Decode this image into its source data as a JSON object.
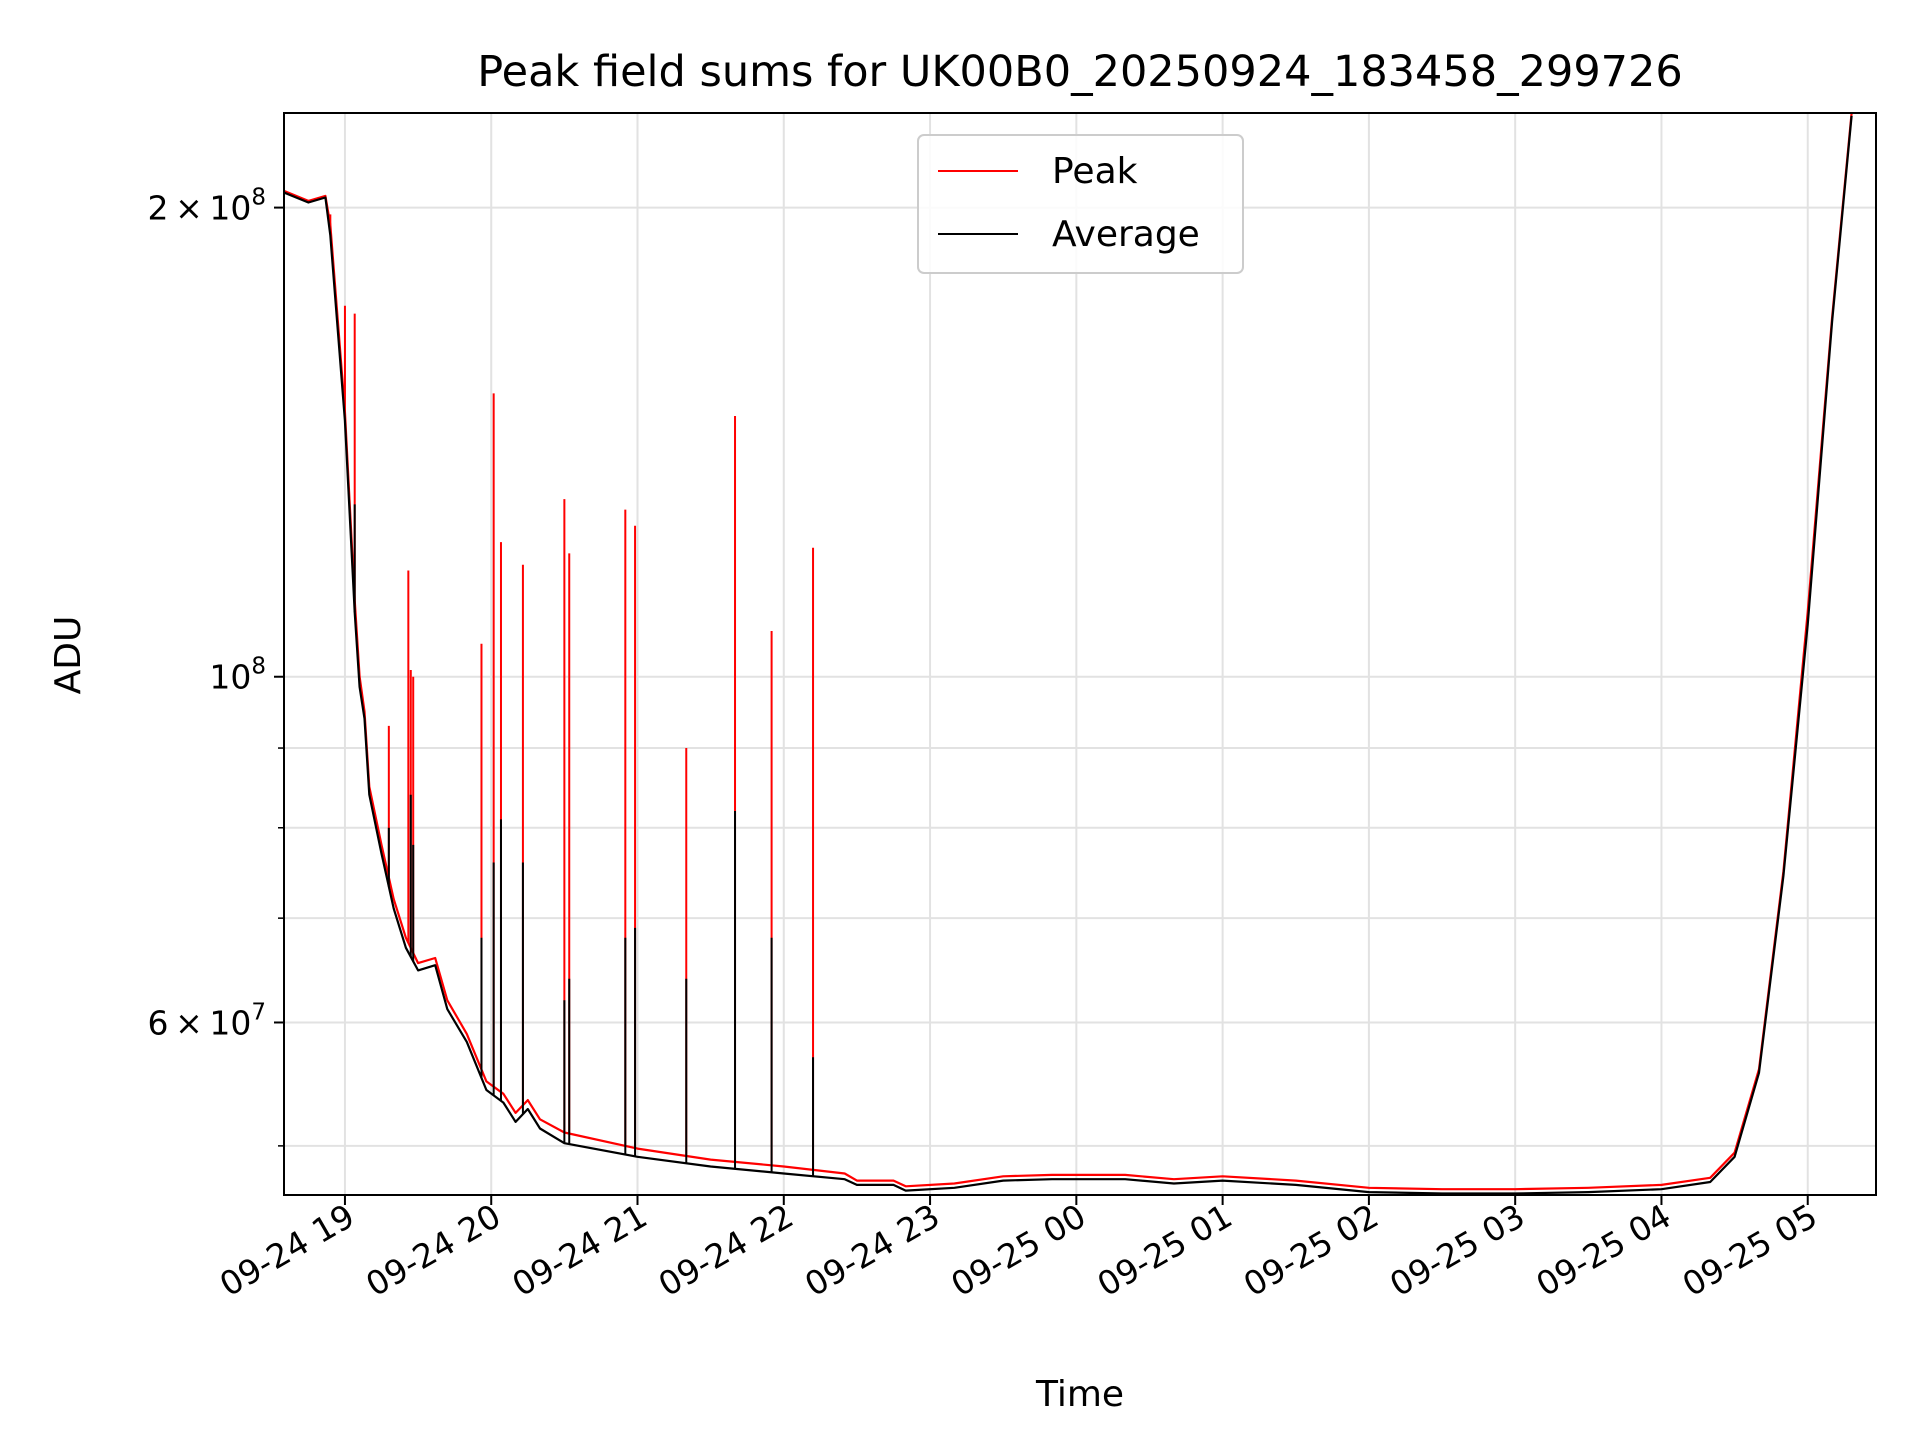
{
  "chart_data": {
    "type": "line",
    "title": "Peak field sums for UK00B0_20250924_183458_299726",
    "xlabel": "Time",
    "ylabel": "ADU",
    "yscale": "log",
    "xlim": [
      "2025-09-24 18:35",
      "2025-09-25 05:28"
    ],
    "ylim": [
      46500000,
      230000000
    ],
    "x_tick_labels": [
      "09-24 19",
      "09-24 20",
      "09-24 21",
      "09-24 22",
      "09-24 23",
      "09-25 00",
      "09-25 01",
      "09-25 02",
      "09-25 03",
      "09-25 04",
      "09-25 05"
    ],
    "x_ticks": [
      "2025-09-24 19:00",
      "2025-09-24 20:00",
      "2025-09-24 21:00",
      "2025-09-24 22:00",
      "2025-09-24 23:00",
      "2025-09-25 00:00",
      "2025-09-25 01:00",
      "2025-09-25 02:00",
      "2025-09-25 03:00",
      "2025-09-25 04:00",
      "2025-09-25 05:00"
    ],
    "y_major_ticks": [
      {
        "value": 200000000,
        "mantissa": "2",
        "exponent": "8"
      },
      {
        "value": 100000000,
        "mantissa": "",
        "exponent": "8"
      },
      {
        "value": 60000000,
        "mantissa": "6",
        "exponent": "7"
      }
    ],
    "y_minor_ticks": [
      50000000,
      70000000,
      80000000,
      90000000
    ],
    "grid": true,
    "legend": {
      "placement": "top-center"
    },
    "series": [
      {
        "name": "Peak",
        "color": "#ff0000",
        "points": [
          [
            "2025-09-24 18:35",
            205000000
          ],
          [
            "2025-09-24 18:45",
            202000000
          ],
          [
            "2025-09-24 18:52",
            203500000
          ],
          [
            "2025-09-24 18:54",
            195000000
          ],
          [
            "2025-09-24 19:00",
            148000000
          ],
          [
            "2025-09-24 19:04",
            112000000
          ],
          [
            "2025-09-24 19:06",
            100000000
          ],
          [
            "2025-09-24 19:08",
            95000000
          ],
          [
            "2025-09-24 19:10",
            85000000
          ],
          [
            "2025-09-24 19:15",
            78000000
          ],
          [
            "2025-09-24 19:20",
            72000000
          ],
          [
            "2025-09-24 19:25",
            68000000
          ],
          [
            "2025-09-24 19:30",
            65500000
          ],
          [
            "2025-09-24 19:37",
            66000000
          ],
          [
            "2025-09-24 19:42",
            62000000
          ],
          [
            "2025-09-24 19:50",
            59000000
          ],
          [
            "2025-09-24 19:58",
            55000000
          ],
          [
            "2025-09-24 20:05",
            54000000
          ],
          [
            "2025-09-24 20:10",
            52500000
          ],
          [
            "2025-09-24 20:15",
            53500000
          ],
          [
            "2025-09-24 20:20",
            52000000
          ],
          [
            "2025-09-24 20:30",
            51000000
          ],
          [
            "2025-09-24 21:00",
            49800000
          ],
          [
            "2025-09-24 21:30",
            49000000
          ],
          [
            "2025-09-24 22:00",
            48500000
          ],
          [
            "2025-09-24 22:25",
            48000000
          ],
          [
            "2025-09-24 22:30",
            47500000
          ],
          [
            "2025-09-24 22:45",
            47500000
          ],
          [
            "2025-09-24 22:50",
            47100000
          ],
          [
            "2025-09-24 23:10",
            47300000
          ],
          [
            "2025-09-24 23:30",
            47800000
          ],
          [
            "2025-09-24 23:50",
            47900000
          ],
          [
            "2025-09-25 00:20",
            47900000
          ],
          [
            "2025-09-25 00:40",
            47600000
          ],
          [
            "2025-09-25 01:00",
            47800000
          ],
          [
            "2025-09-25 01:30",
            47500000
          ],
          [
            "2025-09-25 02:00",
            47000000
          ],
          [
            "2025-09-25 02:30",
            46900000
          ],
          [
            "2025-09-25 03:00",
            46900000
          ],
          [
            "2025-09-25 03:30",
            47000000
          ],
          [
            "2025-09-25 04:00",
            47200000
          ],
          [
            "2025-09-25 04:20",
            47700000
          ],
          [
            "2025-09-25 04:30",
            49500000
          ],
          [
            "2025-09-25 04:40",
            56000000
          ],
          [
            "2025-09-25 04:50",
            75000000
          ],
          [
            "2025-09-25 05:00",
            110000000
          ],
          [
            "2025-09-25 05:10",
            170000000
          ],
          [
            "2025-09-25 05:18",
            230000000
          ]
        ],
        "spikes": [
          [
            "2025-09-24 18:54",
            198000000
          ],
          [
            "2025-09-24 19:00",
            173000000
          ],
          [
            "2025-09-24 19:04",
            171000000
          ],
          [
            "2025-09-24 19:18",
            93000000
          ],
          [
            "2025-09-24 19:26",
            117000000
          ],
          [
            "2025-09-24 19:27",
            101000000
          ],
          [
            "2025-09-24 19:28",
            100000000
          ],
          [
            "2025-09-24 19:56",
            105000000
          ],
          [
            "2025-09-24 20:01",
            152000000
          ],
          [
            "2025-09-24 20:04",
            122000000
          ],
          [
            "2025-09-24 20:13",
            118000000
          ],
          [
            "2025-09-24 20:30",
            130000000
          ],
          [
            "2025-09-24 20:32",
            120000000
          ],
          [
            "2025-09-24 20:55",
            128000000
          ],
          [
            "2025-09-24 20:59",
            125000000
          ],
          [
            "2025-09-24 21:20",
            90000000
          ],
          [
            "2025-09-24 21:40",
            147000000
          ],
          [
            "2025-09-24 21:55",
            107000000
          ],
          [
            "2025-09-24 22:12",
            121000000
          ]
        ]
      },
      {
        "name": "Average",
        "color": "#000000",
        "points": [
          [
            "2025-09-24 18:35",
            204500000
          ],
          [
            "2025-09-24 18:45",
            201500000
          ],
          [
            "2025-09-24 18:52",
            203000000
          ],
          [
            "2025-09-24 18:54",
            192000000
          ],
          [
            "2025-09-24 19:00",
            146000000
          ],
          [
            "2025-09-24 19:04",
            110000000
          ],
          [
            "2025-09-24 19:06",
            98500000
          ],
          [
            "2025-09-24 19:08",
            94000000
          ],
          [
            "2025-09-24 19:10",
            84000000
          ],
          [
            "2025-09-24 19:15",
            77000000
          ],
          [
            "2025-09-24 19:20",
            71000000
          ],
          [
            "2025-09-24 19:25",
            67000000
          ],
          [
            "2025-09-24 19:30",
            64800000
          ],
          [
            "2025-09-24 19:37",
            65300000
          ],
          [
            "2025-09-24 19:42",
            61200000
          ],
          [
            "2025-09-24 19:50",
            58300000
          ],
          [
            "2025-09-24 19:58",
            54300000
          ],
          [
            "2025-09-24 20:05",
            53300000
          ],
          [
            "2025-09-24 20:10",
            51800000
          ],
          [
            "2025-09-24 20:15",
            52800000
          ],
          [
            "2025-09-24 20:20",
            51300000
          ],
          [
            "2025-09-24 20:30",
            50200000
          ],
          [
            "2025-09-24 21:00",
            49200000
          ],
          [
            "2025-09-24 21:30",
            48500000
          ],
          [
            "2025-09-24 22:00",
            48000000
          ],
          [
            "2025-09-24 22:25",
            47600000
          ],
          [
            "2025-09-24 22:30",
            47200000
          ],
          [
            "2025-09-24 22:45",
            47200000
          ],
          [
            "2025-09-24 22:50",
            46800000
          ],
          [
            "2025-09-24 23:10",
            47000000
          ],
          [
            "2025-09-24 23:30",
            47500000
          ],
          [
            "2025-09-24 23:50",
            47600000
          ],
          [
            "2025-09-25 00:20",
            47600000
          ],
          [
            "2025-09-25 00:40",
            47300000
          ],
          [
            "2025-09-25 01:00",
            47500000
          ],
          [
            "2025-09-25 01:30",
            47200000
          ],
          [
            "2025-09-25 02:00",
            46700000
          ],
          [
            "2025-09-25 02:30",
            46600000
          ],
          [
            "2025-09-25 03:00",
            46600000
          ],
          [
            "2025-09-25 03:30",
            46700000
          ],
          [
            "2025-09-25 04:00",
            46900000
          ],
          [
            "2025-09-25 04:20",
            47400000
          ],
          [
            "2025-09-25 04:30",
            49200000
          ],
          [
            "2025-09-25 04:40",
            55700000
          ],
          [
            "2025-09-25 04:50",
            74500000
          ],
          [
            "2025-09-25 05:00",
            108000000
          ],
          [
            "2025-09-25 05:10",
            169000000
          ],
          [
            "2025-09-25 05:18",
            229000000
          ]
        ],
        "spikes": [
          [
            "2025-09-24 19:04",
            129000000
          ],
          [
            "2025-09-24 19:18",
            80000000
          ],
          [
            "2025-09-24 19:27",
            84000000
          ],
          [
            "2025-09-24 19:28",
            78000000
          ],
          [
            "2025-09-24 19:56",
            68000000
          ],
          [
            "2025-09-24 20:01",
            76000000
          ],
          [
            "2025-09-24 20:04",
            81000000
          ],
          [
            "2025-09-24 20:13",
            76000000
          ],
          [
            "2025-09-24 20:30",
            62000000
          ],
          [
            "2025-09-24 20:32",
            64000000
          ],
          [
            "2025-09-24 20:55",
            68000000
          ],
          [
            "2025-09-24 20:59",
            69000000
          ],
          [
            "2025-09-24 21:20",
            64000000
          ],
          [
            "2025-09-24 21:40",
            82000000
          ],
          [
            "2025-09-24 21:55",
            68000000
          ],
          [
            "2025-09-24 22:12",
            57000000
          ]
        ]
      }
    ]
  }
}
